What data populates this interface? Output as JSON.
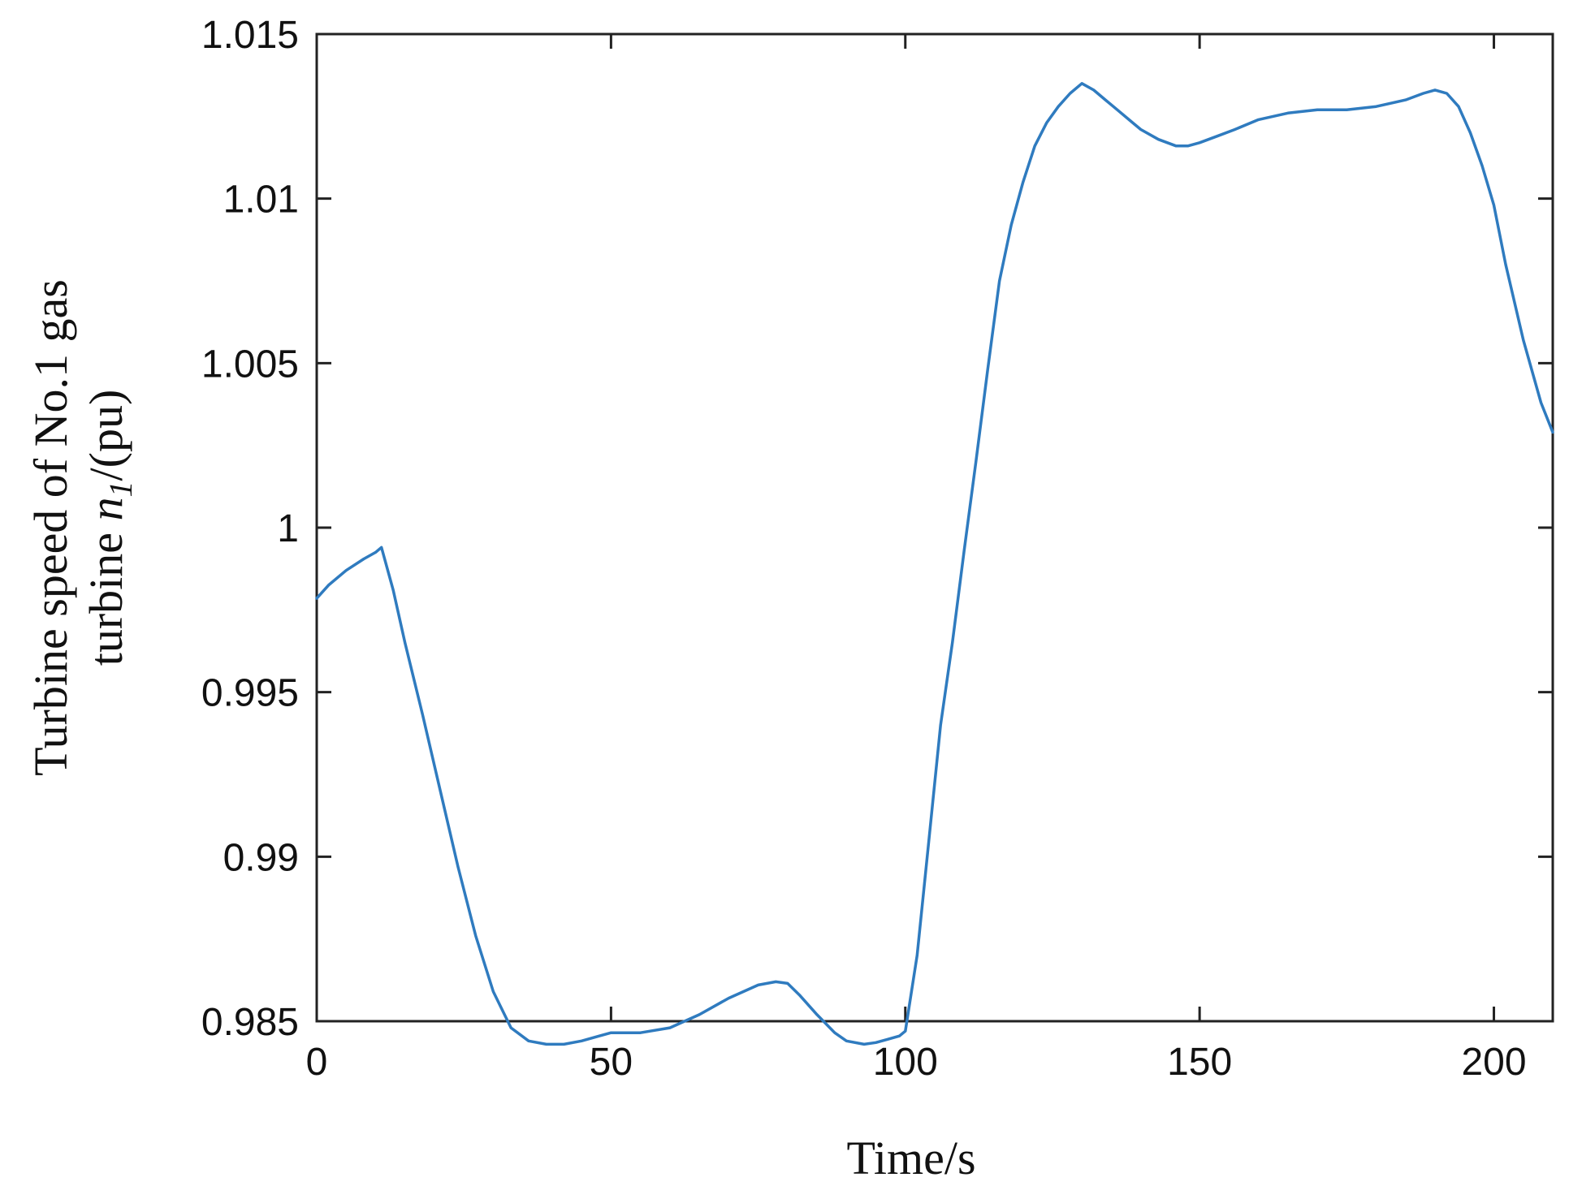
{
  "chart_data": {
    "type": "line",
    "title": "",
    "xlabel": "Time/s",
    "ylabel_line1": "Turbine speed of No.1 gas",
    "ylabel_line2_prefix": "turbine ",
    "ylabel_var": "n",
    "ylabel_sub": "1",
    "ylabel_suffix": "/(pu)",
    "xlim": [
      0,
      210
    ],
    "ylim": [
      0.985,
      1.015
    ],
    "x_ticks": [
      0,
      50,
      100,
      150,
      200
    ],
    "x_tick_labels": [
      "0",
      "50",
      "100",
      "150",
      "200"
    ],
    "y_ticks": [
      0.985,
      0.99,
      0.995,
      1.0,
      1.005,
      1.01,
      1.015
    ],
    "y_tick_labels": [
      "0.985",
      "0.99",
      "0.995",
      "1",
      "1.005",
      "1.01",
      "1.015"
    ],
    "grid": false,
    "legend": "none",
    "line_color": "#2f7bbf",
    "series": [
      {
        "x": [
          0,
          2,
          5,
          8,
          10,
          11,
          13,
          15,
          18,
          21,
          24,
          27,
          30,
          33,
          36,
          39,
          42,
          45,
          48,
          50,
          55,
          60,
          65,
          70,
          75,
          78,
          80,
          82,
          85,
          88,
          90,
          93,
          95,
          97,
          99,
          100,
          102,
          104,
          106,
          108,
          110,
          112,
          114,
          116,
          118,
          120,
          122,
          124,
          126,
          128,
          130,
          132,
          134,
          136,
          138,
          140,
          143,
          146,
          148,
          150,
          153,
          156,
          160,
          165,
          170,
          175,
          180,
          185,
          188,
          190,
          192,
          194,
          196,
          198,
          200,
          202,
          205,
          208,
          210
        ],
        "values": [
          0.99785,
          0.99825,
          0.9987,
          0.99905,
          0.99925,
          0.9994,
          0.9981,
          0.9965,
          0.9943,
          0.992,
          0.9897,
          0.9876,
          0.9859,
          0.9848,
          0.9844,
          0.9843,
          0.9843,
          0.9844,
          0.98455,
          0.98465,
          0.98465,
          0.9848,
          0.9852,
          0.9857,
          0.9861,
          0.9862,
          0.98615,
          0.9858,
          0.9852,
          0.98465,
          0.9844,
          0.9843,
          0.98435,
          0.98445,
          0.98455,
          0.9847,
          0.987,
          0.9905,
          0.994,
          0.9965,
          0.9993,
          1.002,
          1.0048,
          1.0075,
          1.0092,
          1.0105,
          1.0116,
          1.0123,
          1.0128,
          1.0132,
          1.0135,
          1.0133,
          1.013,
          1.0127,
          1.0124,
          1.0121,
          1.0118,
          1.0116,
          1.0116,
          1.0117,
          1.0119,
          1.0121,
          1.0124,
          1.0126,
          1.0127,
          1.0127,
          1.0128,
          1.013,
          1.0132,
          1.0133,
          1.0132,
          1.0128,
          1.012,
          1.011,
          1.0098,
          1.008,
          1.0057,
          1.0038,
          1.0029
        ]
      }
    ]
  }
}
